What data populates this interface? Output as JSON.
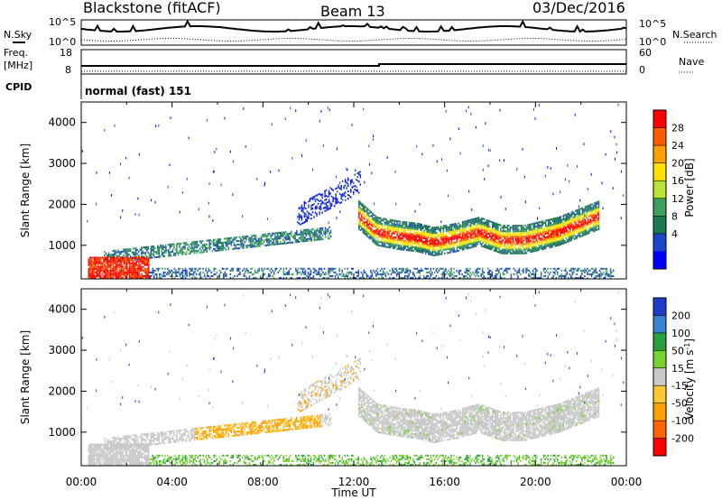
{
  "header": {
    "title": "Blackstone (fitACF)",
    "beam": "Beam 13",
    "date": "03/Dec/2016"
  },
  "status": {
    "nsky_label": "N.Sky",
    "nsearch_label": "N.Search",
    "noise_top": "10^5",
    "noise_bottom": "10^0",
    "noise_top_right": "10^5",
    "noise_bottom_right": "10^0",
    "freq_label": "Freq.",
    "freq_unit": "[MHz]",
    "freq_top": "18",
    "freq_bottom": "8",
    "nave_label": "Nave",
    "nave_top": "60",
    "nave_bottom": "0",
    "cpid_label": "CPID",
    "cpid_value": "normal (fast) 151"
  },
  "chart_data": [
    {
      "type": "heatmap",
      "title": "",
      "xlabel": "Time UT",
      "ylabel": "Slant Range [km]",
      "xlim": [
        "00:00",
        "24:00"
      ],
      "ylim": [
        180,
        4500
      ],
      "x_ticks": [
        "00:00",
        "04:00",
        "08:00",
        "12:00",
        "16:00",
        "20:00",
        "00:00"
      ],
      "y_ticks": [
        1000,
        2000,
        3000,
        4000
      ],
      "colorbar": {
        "label": "Power [dB]",
        "ticks": [
          "28",
          "24",
          "20",
          "16",
          "12",
          "8",
          "4"
        ],
        "colors": [
          "#ff0000",
          "#ff5a00",
          "#ffa000",
          "#ffe000",
          "#b4e632",
          "#3ca060",
          "#1e7850",
          "#1e46c8",
          "#0000ff"
        ]
      },
      "features": {
        "main_echo_band": {
          "start_hour": 12.2,
          "end_hour": 22.8,
          "center_km": [
            1700,
            1300,
            1200,
            1150,
            1050,
            1150,
            1300,
            1100,
            1100,
            1300,
            1700
          ],
          "hours": [
            12.2,
            13.0,
            14.0,
            14.8,
            15.5,
            16.5,
            17.5,
            18.5,
            19.5,
            21.0,
            22.8
          ]
        },
        "morning_band_hours": [
          0.5,
          11.0
        ],
        "near_range_echoes_km": [
          180,
          700
        ]
      }
    },
    {
      "type": "heatmap",
      "title": "",
      "xlabel": "Time UT",
      "ylabel": "Slant Range [km]",
      "xlim": [
        "00:00",
        "24:00"
      ],
      "ylim": [
        180,
        4500
      ],
      "x_ticks": [
        "00:00",
        "04:00",
        "08:00",
        "12:00",
        "16:00",
        "20:00",
        "00:00"
      ],
      "y_ticks": [
        1000,
        2000,
        3000,
        4000
      ],
      "colorbar": {
        "label": "Velocity [m s^-1]",
        "ticks": [
          "200",
          "100",
          "50",
          "15",
          "-15",
          "-50",
          "-100",
          "-200"
        ],
        "colors": [
          "#1e3cc8",
          "#3c82d2",
          "#28a03c",
          "#78d232",
          "#c8c8c8",
          "#ffc832",
          "#ffa000",
          "#ff6400",
          "#ff0000"
        ]
      }
    }
  ]
}
